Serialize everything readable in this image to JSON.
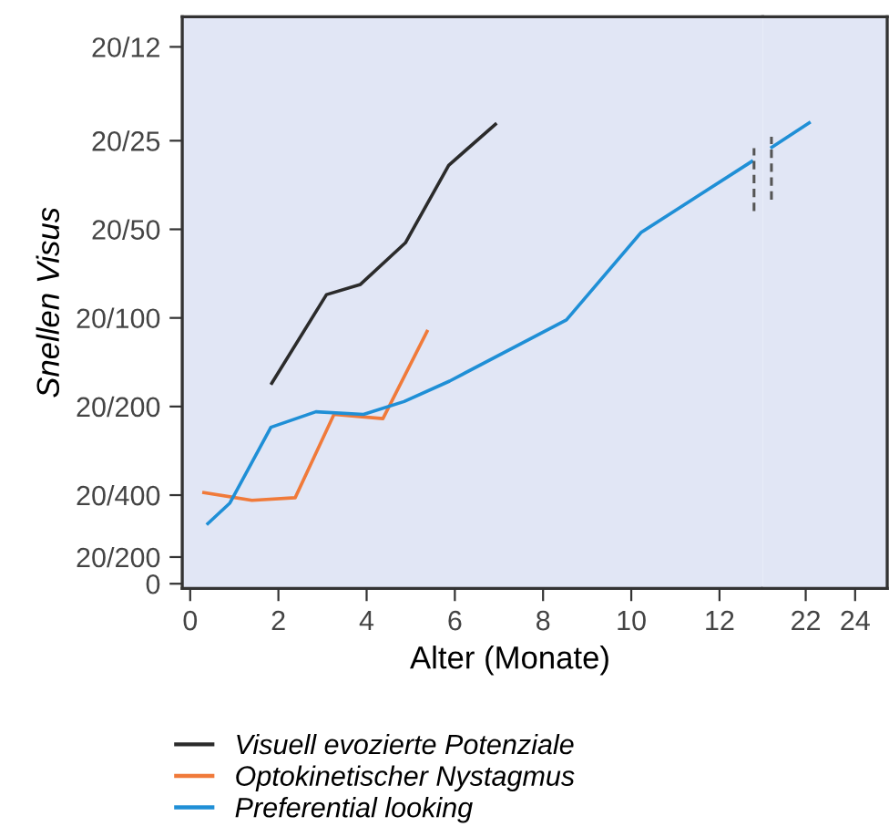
{
  "chart_data": [
    {
      "type": "line",
      "xlabel": "Alter (Monate)",
      "ylabel": "Snellen Visus",
      "log": "y",
      "xlim": [
        -0.18,
        12.98
      ],
      "ylim": [
        0.0241,
        2.11
      ],
      "xticks": [
        0,
        2,
        4,
        6,
        8,
        10,
        12
      ],
      "yticks": [
        {
          "value": 0.025,
          "label": "0"
        },
        {
          "value": 0.0308,
          "label": "20/200"
        },
        {
          "value": 0.05,
          "label": "20/400"
        },
        {
          "value": 0.1,
          "label": "20/200"
        },
        {
          "value": 0.2,
          "label": "20/100"
        },
        {
          "value": 0.4,
          "label": "20/50"
        },
        {
          "value": 0.8,
          "label": "20/25"
        },
        {
          "value": 1.667,
          "label": "20/12"
        }
      ],
      "grid": false,
      "legend": "bottom",
      "marker": "none",
      "line_style": "solid",
      "series": [
        {
          "name": "Visuell evozierte Potenziale",
          "color": "#2b2b2b",
          "x": [
            1.85,
            3.09,
            3.86,
            4.88,
            5.86,
            6.92
          ],
          "values": [
            0.12,
            0.24,
            0.26,
            0.36,
            0.66,
            0.91
          ]
        },
        {
          "name": "Optokinetischer Nystagmus",
          "color": "#f07a3a",
          "x": [
            0.31,
            1.4,
            2.38,
            3.26,
            4.37,
            5.37
          ],
          "values": [
            0.051,
            0.048,
            0.049,
            0.094,
            0.091,
            0.18
          ]
        },
        {
          "name": "Preferential looking",
          "color": "#1f8fd6",
          "x": [
            0.4,
            0.9,
            1.83,
            2.85,
            3.93,
            4.85,
            5.88,
            8.53,
            10.22,
            12.73
          ],
          "values": [
            0.04,
            0.047,
            0.085,
            0.096,
            0.094,
            0.104,
            0.122,
            0.197,
            0.39,
            0.68
          ]
        }
      ]
    },
    {
      "type": "line",
      "log": "y",
      "xlim": [
        20.26,
        25.3
      ],
      "ylim": [
        0.0241,
        2.11
      ],
      "xticks": [
        22,
        24
      ],
      "tick_labels": "x",
      "grid": false,
      "marker": "none",
      "line_style": "solid",
      "series": [
        {
          "color": "#1f8fd6",
          "x": [
            20.63,
            22.14
          ],
          "values": [
            0.76,
            0.92
          ]
        }
      ]
    }
  ]
}
